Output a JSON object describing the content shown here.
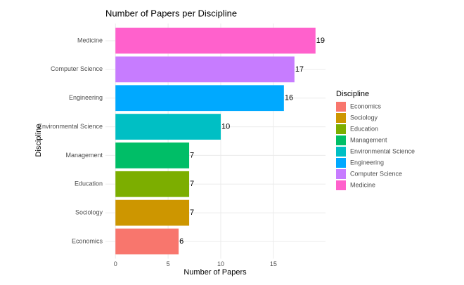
{
  "chart_data": {
    "type": "barh",
    "title": "Number of Papers per Discipline",
    "x_label": "Number of Papers",
    "y_label": "Discipline",
    "legend_title": "Discipline",
    "categories": [
      "Economics",
      "Sociology",
      "Education",
      "Management",
      "Environmental Science",
      "Engineering",
      "Computer Science",
      "Medicine"
    ],
    "values": [
      6,
      7,
      7,
      7,
      10,
      16,
      17,
      19
    ],
    "colors": [
      "#F8766D",
      "#CD9600",
      "#7CAE00",
      "#00BE67",
      "#00BFC4",
      "#00A9FF",
      "#C77CFF",
      "#FF61CC"
    ],
    "xlim": [
      -0.95,
      19.95
    ],
    "xticks": [
      0,
      5,
      10,
      15
    ],
    "grid": true,
    "legend": "right"
  }
}
